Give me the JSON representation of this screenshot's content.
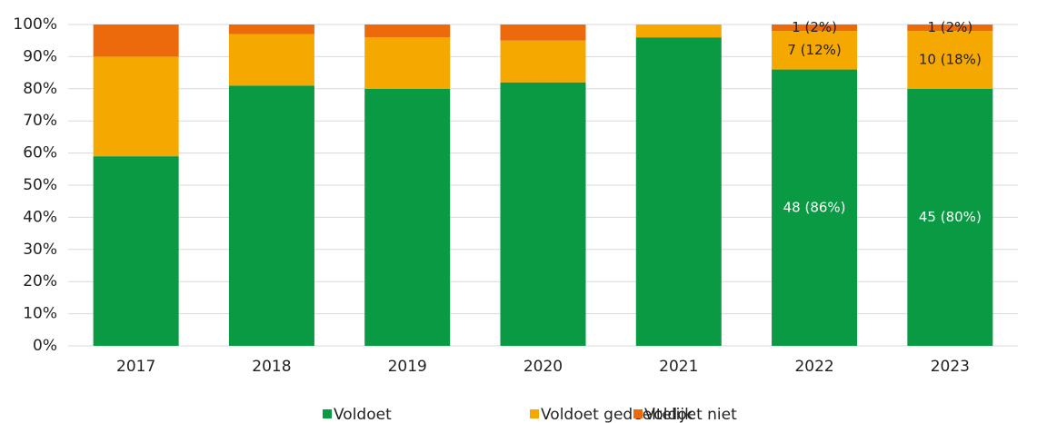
{
  "chart_data": {
    "type": "stacked_bar",
    "categories": [
      "2017",
      "2018",
      "2019",
      "2020",
      "2021",
      "2022",
      "2023"
    ],
    "series": [
      {
        "name": "Voldoet",
        "color": "#0a9a43",
        "values": [
          59,
          81,
          80,
          82,
          96,
          86,
          80
        ],
        "value_labels": [
          null,
          null,
          null,
          null,
          null,
          "48 (86%)",
          "45 (80%)"
        ]
      },
      {
        "name": "Voldoet gedeeltelijk",
        "color": "#f5a800",
        "values": [
          31,
          16,
          16,
          13,
          4,
          12,
          18
        ],
        "value_labels": [
          null,
          null,
          null,
          null,
          null,
          "7 (12%)",
          "10 (18%)"
        ]
      },
      {
        "name": "Voldoet niet",
        "color": "#ec6a0c",
        "values": [
          10,
          3,
          4,
          5,
          0,
          2,
          2
        ],
        "value_labels": [
          null,
          null,
          null,
          null,
          null,
          "1 (2%)",
          "1 (2%)"
        ]
      }
    ],
    "ylim": [
      0,
      100
    ],
    "yticks": [
      {
        "value": 0,
        "label": "0%"
      },
      {
        "value": 10,
        "label": "10%"
      },
      {
        "value": 20,
        "label": "20%"
      },
      {
        "value": 30,
        "label": "30%"
      },
      {
        "value": 40,
        "label": "40%"
      },
      {
        "value": 50,
        "label": "50%"
      },
      {
        "value": 60,
        "label": "60%"
      },
      {
        "value": 70,
        "label": "70%"
      },
      {
        "value": 80,
        "label": "80%"
      },
      {
        "value": 90,
        "label": "90%"
      },
      {
        "value": 100,
        "label": "100%"
      }
    ],
    "grid": true,
    "legend": "bottom"
  }
}
